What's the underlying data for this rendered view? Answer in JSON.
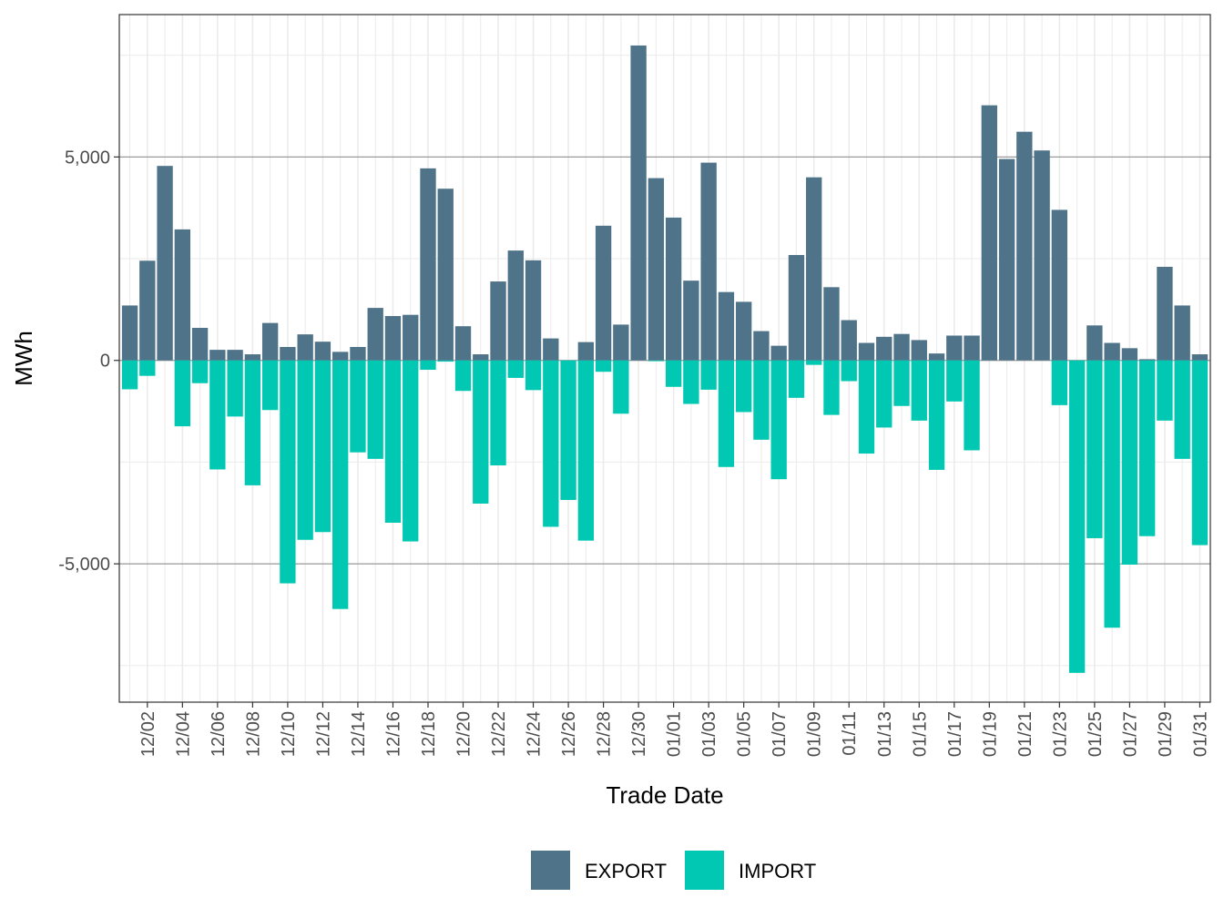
{
  "chart_data": {
    "type": "bar",
    "stacked": true,
    "xlabel": "Trade Date",
    "ylabel": "MWh",
    "ylim": [
      -8400,
      8500
    ],
    "yticks": [
      -5000,
      0,
      5000
    ],
    "ytick_labels": [
      "-5,000",
      "0",
      "5,000"
    ],
    "grid": true,
    "legend_position": "bottom",
    "categories": [
      "12/01",
      "12/02",
      "12/03",
      "12/04",
      "12/05",
      "12/06",
      "12/07",
      "12/08",
      "12/09",
      "12/10",
      "12/11",
      "12/12",
      "12/13",
      "12/14",
      "12/15",
      "12/16",
      "12/17",
      "12/18",
      "12/19",
      "12/20",
      "12/21",
      "12/22",
      "12/23",
      "12/24",
      "12/25",
      "12/26",
      "12/27",
      "12/28",
      "12/29",
      "12/30",
      "12/31",
      "01/01",
      "01/02",
      "01/03",
      "01/04",
      "01/05",
      "01/06",
      "01/07",
      "01/08",
      "01/09",
      "01/10",
      "01/11",
      "01/12",
      "01/13",
      "01/14",
      "01/15",
      "01/16",
      "01/17",
      "01/18",
      "01/19",
      "01/20",
      "01/21",
      "01/22",
      "01/23",
      "01/24",
      "01/25",
      "01/26",
      "01/27",
      "01/28",
      "01/29",
      "01/30",
      "01/31"
    ],
    "x_tick_labels": [
      "12/02",
      "12/04",
      "12/06",
      "12/08",
      "12/10",
      "12/12",
      "12/14",
      "12/16",
      "12/18",
      "12/20",
      "12/22",
      "12/24",
      "12/26",
      "12/28",
      "12/30",
      "01/01",
      "01/03",
      "01/05",
      "01/07",
      "01/09",
      "01/11",
      "01/13",
      "01/15",
      "01/17",
      "01/19",
      "01/21",
      "01/23",
      "01/25",
      "01/27",
      "01/29",
      "01/31"
    ],
    "series": [
      {
        "name": "EXPORT",
        "color": "#4f7389",
        "values": [
          1350,
          2450,
          4780,
          3220,
          800,
          260,
          260,
          150,
          920,
          330,
          640,
          460,
          210,
          330,
          1290,
          1090,
          1120,
          4720,
          4220,
          840,
          150,
          1940,
          2700,
          2460,
          540,
          0,
          450,
          3310,
          880,
          7740,
          4480,
          3510,
          1960,
          4860,
          1680,
          1440,
          720,
          360,
          2590,
          4500,
          1800,
          990,
          430,
          580,
          650,
          500,
          170,
          610,
          610,
          6270,
          4950,
          5620,
          5160,
          3700,
          0,
          860,
          430,
          300,
          30,
          2300,
          1350,
          150
        ]
      },
      {
        "name": "IMPORT",
        "color": "#00c8b2",
        "values": [
          -710,
          -380,
          0,
          -1620,
          -560,
          -2680,
          -1380,
          -3070,
          -1220,
          -5480,
          -4410,
          -4220,
          -6110,
          -2260,
          -2420,
          -3990,
          -4450,
          -230,
          -30,
          -750,
          -3520,
          -2580,
          -430,
          -730,
          -4090,
          -3430,
          -4430,
          -280,
          -1310,
          0,
          -20,
          -650,
          -1070,
          -720,
          -2620,
          -1270,
          -1950,
          -2920,
          -920,
          -110,
          -1340,
          -510,
          -2290,
          -1650,
          -1120,
          -1480,
          -2690,
          -1010,
          -2210,
          0,
          0,
          0,
          0,
          -1100,
          -7680,
          -4370,
          -6570,
          -5020,
          -4320,
          -1480,
          -2420,
          -4540
        ]
      }
    ]
  }
}
